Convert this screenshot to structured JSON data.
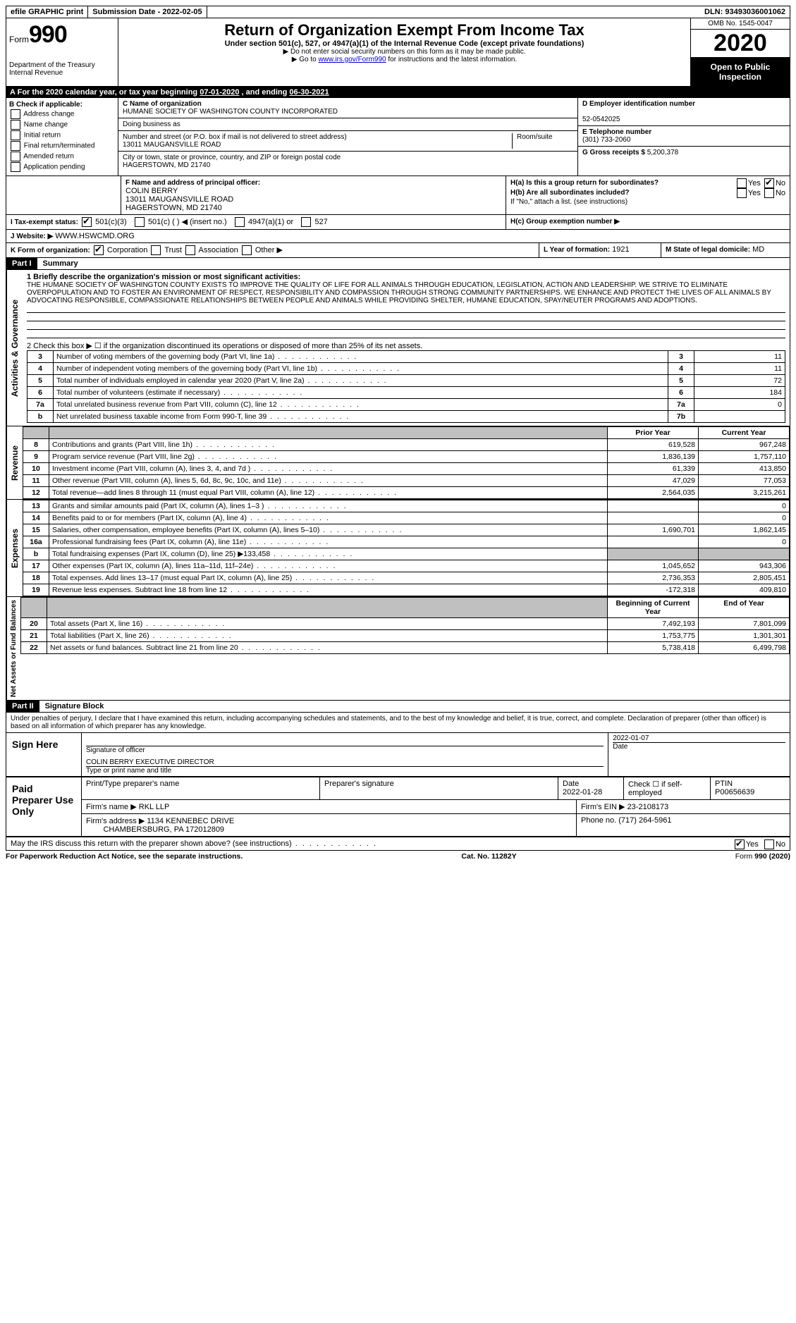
{
  "topbar": {
    "efile": "efile GRAPHIC print",
    "submission_label": "Submission Date - ",
    "submission_date": "2022-02-05",
    "dln_label": "DLN: ",
    "dln": "93493036001062"
  },
  "header": {
    "form_word": "Form",
    "form_num": "990",
    "dept1": "Department of the Treasury",
    "dept2": "Internal Revenue",
    "title": "Return of Organization Exempt From Income Tax",
    "subtitle": "Under section 501(c), 527, or 4947(a)(1) of the Internal Revenue Code (except private foundations)",
    "note1": "▶ Do not enter social security numbers on this form as it may be made public.",
    "note2_pre": "▶ Go to ",
    "note2_link": "www.irs.gov/Form990",
    "note2_post": " for instructions and the latest information.",
    "omb": "OMB No. 1545-0047",
    "year": "2020",
    "open": "Open to Public Inspection"
  },
  "rowA": {
    "text_pre": "For the 2020 calendar year, or tax year beginning ",
    "begin": "07-01-2020",
    "mid": " , and ending ",
    "end": "06-30-2021"
  },
  "boxB": {
    "header": "B Check if applicable:",
    "opts": [
      "Address change",
      "Name change",
      "Initial return",
      "Final return/terminated",
      "Amended return",
      "Application pending"
    ]
  },
  "boxC": {
    "label": "C Name of organization",
    "name": "HUMANE SOCIETY OF WASHINGTON COUNTY INCORPORATED",
    "dba_label": "Doing business as",
    "dba": "",
    "street_label": "Number and street (or P.O. box if mail is not delivered to street address)",
    "street": "13011 MAUGANSVILLE ROAD",
    "room_label": "Room/suite",
    "city_label": "City or town, state or province, country, and ZIP or foreign postal code",
    "city": "HAGERSTOWN, MD  21740"
  },
  "boxD": {
    "label": "D Employer identification number",
    "value": "52-0542025"
  },
  "boxE": {
    "label": "E Telephone number",
    "value": "(301) 733-2060"
  },
  "boxG": {
    "label": "G Gross receipts $",
    "value": "5,200,378"
  },
  "boxF": {
    "label": "F  Name and address of principal officer:",
    "name": "COLIN BERRY",
    "street": "13011 MAUGANSVILLE ROAD",
    "city": "HAGERSTOWN, MD  21740"
  },
  "boxH": {
    "a_label": "H(a)  Is this a group return for subordinates?",
    "a_no_checked": true,
    "b_label": "H(b)  Are all subordinates included?",
    "b_note": "If \"No,\" attach a list. (see instructions)",
    "c_label": "H(c)  Group exemption number ▶"
  },
  "boxI": {
    "label": "I  Tax-exempt status:",
    "opt1": "501(c)(3)",
    "opt2": "501(c) (  ) ◀ (insert no.)",
    "opt3": "4947(a)(1) or",
    "opt4": "527"
  },
  "boxJ": {
    "label": "J  Website: ▶",
    "value": "WWW.HSWCMD.ORG"
  },
  "boxK": {
    "label": "K Form of organization:",
    "opts": [
      "Corporation",
      "Trust",
      "Association",
      "Other ▶"
    ],
    "corp_checked": true
  },
  "boxL": {
    "label": "L Year of formation:",
    "value": "1921"
  },
  "boxM": {
    "label": "M State of legal domicile:",
    "value": "MD"
  },
  "part1": {
    "header": "Part I",
    "title": "Summary",
    "line1_label": "1  Briefly describe the organization's mission or most significant activities:",
    "mission": "THE HUMANE SOCIETY OF WASHINGTON COUNTY EXISTS TO IMPROVE THE QUALITY OF LIFE FOR ALL ANIMALS THROUGH EDUCATION, LEGISLATION, ACTION AND LEADERSHIP. WE STRIVE TO ELIMINATE OVERPOPULATION AND TO FOSTER AN ENVIRONMENT OF RESPECT, RESPONSIBILITY AND COMPASSION THROUGH STRONG COMMUNITY PARTNERSHIPS. WE ENHANCE AND PROTECT THE LIVES OF ALL ANIMALS BY ADVOCATING RESPONSIBLE, COMPASSIONATE RELATIONSHIPS BETWEEN PEOPLE AND ANIMALS WHILE PROVIDING SHELTER, HUMANE EDUCATION, SPAY/NEUTER PROGRAMS AND ADOPTIONS.",
    "line2": "2  Check this box ▶ ☐ if the organization discontinued its operations or disposed of more than 25% of its net assets.",
    "rows_gov": [
      {
        "n": "3",
        "label": "Number of voting members of the governing body (Part VI, line 1a)",
        "box": "3",
        "val": "11"
      },
      {
        "n": "4",
        "label": "Number of independent voting members of the governing body (Part VI, line 1b)",
        "box": "4",
        "val": "11"
      },
      {
        "n": "5",
        "label": "Total number of individuals employed in calendar year 2020 (Part V, line 2a)",
        "box": "5",
        "val": "72"
      },
      {
        "n": "6",
        "label": "Total number of volunteers (estimate if necessary)",
        "box": "6",
        "val": "184"
      },
      {
        "n": "7a",
        "label": "Total unrelated business revenue from Part VIII, column (C), line 12",
        "box": "7a",
        "val": "0"
      },
      {
        "n": "b",
        "label": "Net unrelated business taxable income from Form 990-T, line 39",
        "box": "7b",
        "val": ""
      }
    ],
    "col_prior": "Prior Year",
    "col_current": "Current Year",
    "rows_rev": [
      {
        "n": "8",
        "label": "Contributions and grants (Part VIII, line 1h)",
        "prior": "619,528",
        "curr": "967,248"
      },
      {
        "n": "9",
        "label": "Program service revenue (Part VIII, line 2g)",
        "prior": "1,836,139",
        "curr": "1,757,110"
      },
      {
        "n": "10",
        "label": "Investment income (Part VIII, column (A), lines 3, 4, and 7d )",
        "prior": "61,339",
        "curr": "413,850"
      },
      {
        "n": "11",
        "label": "Other revenue (Part VIII, column (A), lines 5, 6d, 8c, 9c, 10c, and 11e)",
        "prior": "47,029",
        "curr": "77,053"
      },
      {
        "n": "12",
        "label": "Total revenue—add lines 8 through 11 (must equal Part VIII, column (A), line 12)",
        "prior": "2,564,035",
        "curr": "3,215,261"
      }
    ],
    "rows_exp": [
      {
        "n": "13",
        "label": "Grants and similar amounts paid (Part IX, column (A), lines 1–3 )",
        "prior": "",
        "curr": "0"
      },
      {
        "n": "14",
        "label": "Benefits paid to or for members (Part IX, column (A), line 4)",
        "prior": "",
        "curr": "0"
      },
      {
        "n": "15",
        "label": "Salaries, other compensation, employee benefits (Part IX, column (A), lines 5–10)",
        "prior": "1,690,701",
        "curr": "1,862,145"
      },
      {
        "n": "16a",
        "label": "Professional fundraising fees (Part IX, column (A), line 11e)",
        "prior": "",
        "curr": "0"
      },
      {
        "n": "b",
        "label": "Total fundraising expenses (Part IX, column (D), line 25) ▶133,458",
        "prior": "grey",
        "curr": "grey"
      },
      {
        "n": "17",
        "label": "Other expenses (Part IX, column (A), lines 11a–11d, 11f–24e)",
        "prior": "1,045,652",
        "curr": "943,306"
      },
      {
        "n": "18",
        "label": "Total expenses. Add lines 13–17 (must equal Part IX, column (A), line 25)",
        "prior": "2,736,353",
        "curr": "2,805,451"
      },
      {
        "n": "19",
        "label": "Revenue less expenses. Subtract line 18 from line 12",
        "prior": "-172,318",
        "curr": "409,810"
      }
    ],
    "col_begin": "Beginning of Current Year",
    "col_end": "End of Year",
    "rows_net": [
      {
        "n": "20",
        "label": "Total assets (Part X, line 16)",
        "prior": "7,492,193",
        "curr": "7,801,099"
      },
      {
        "n": "21",
        "label": "Total liabilities (Part X, line 26)",
        "prior": "1,753,775",
        "curr": "1,301,301"
      },
      {
        "n": "22",
        "label": "Net assets or fund balances. Subtract line 21 from line 20",
        "prior": "5,738,418",
        "curr": "6,499,798"
      }
    ],
    "side_gov": "Activities & Governance",
    "side_rev": "Revenue",
    "side_exp": "Expenses",
    "side_net": "Net Assets or Fund Balances"
  },
  "part2": {
    "header": "Part II",
    "title": "Signature Block",
    "penalty": "Under penalties of perjury, I declare that I have examined this return, including accompanying schedules and statements, and to the best of my knowledge and belief, it is true, correct, and complete. Declaration of preparer (other than officer) is based on all information of which preparer has any knowledge.",
    "sign_here": "Sign Here",
    "sig_officer": "Signature of officer",
    "sig_date": "2022-01-07",
    "date_label": "Date",
    "officer_name": "COLIN BERRY EXECUTIVE DIRECTOR",
    "officer_label": "Type or print name and title",
    "paid": "Paid Preparer Use Only",
    "prep_name_label": "Print/Type preparer's name",
    "prep_sig_label": "Preparer's signature",
    "prep_date_label": "Date",
    "prep_date": "2022-01-28",
    "self_emp": "Check ☐ if self-employed",
    "ptin_label": "PTIN",
    "ptin": "P00656639",
    "firm_name_label": "Firm's name    ▶",
    "firm_name": "RKL LLP",
    "firm_ein_label": "Firm's EIN ▶",
    "firm_ein": "23-2108173",
    "firm_addr_label": "Firm's address ▶",
    "firm_addr1": "1134 KENNEBEC DRIVE",
    "firm_addr2": "CHAMBERSBURG, PA  172012809",
    "phone_label": "Phone no.",
    "phone": "(717) 264-5961",
    "discuss": "May the IRS discuss this return with the preparer shown above? (see instructions)",
    "yes_checked": true
  },
  "footer": {
    "left": "For Paperwork Reduction Act Notice, see the separate instructions.",
    "mid": "Cat. No. 11282Y",
    "right": "Form 990 (2020)"
  },
  "labels": {
    "yes": "Yes",
    "no": "No"
  }
}
